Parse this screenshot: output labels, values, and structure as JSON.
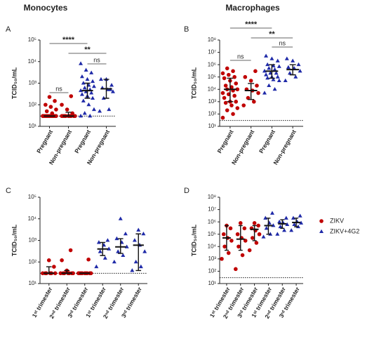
{
  "chart_data": [
    {
      "type": "dotplot",
      "panel": "A",
      "title": "Monocytes",
      "y_label": "TCID₅₀/mL",
      "log_y": true,
      "categories": [
        "Pregnant",
        "Non-pregnant",
        "Pregnant",
        "Non-pregnant"
      ],
      "ylim": [
        10,
        100000
      ],
      "yticks": [
        {
          "value": 10,
          "label": "10¹"
        },
        {
          "value": 100,
          "label": "10²"
        },
        {
          "value": 1000,
          "label": "10³"
        },
        {
          "value": 10000,
          "label": "10⁴"
        },
        {
          "value": 100000,
          "label": "10⁵"
        }
      ],
      "detection_limit": 30,
      "series": [
        {
          "color": "#c00000",
          "marker": "circle",
          "values": [
            [
              30,
              30,
              30,
              30,
              30,
              30,
              30,
              30,
              30,
              30,
              30,
              30,
              40,
              50,
              60,
              80,
              100,
              150,
              230
            ],
            [
              30,
              30,
              30,
              30,
              30,
              30,
              30,
              30,
              30,
              40,
              60,
              100,
              250
            ],
            null,
            null
          ]
        },
        {
          "color": "#1f2aa8",
          "marker": "triangle",
          "values": [
            null,
            null,
            [
              30,
              30,
              40,
              60,
              100,
              150,
              200,
              250,
              300,
              350,
              400,
              450,
              500,
              600,
              700,
              800,
              1000,
              1200,
              1500,
              2000,
              3000,
              4000,
              8000
            ],
            [
              50,
              60,
              200,
              400,
              500,
              600,
              800,
              1500,
              1500,
              500
            ]
          ]
        }
      ],
      "medians": [
        30,
        30,
        450,
        550
      ],
      "iqr": [
        [
          30,
          30
        ],
        [
          30,
          45
        ],
        [
          200,
          1000
        ],
        [
          200,
          1500
        ]
      ],
      "brackets": [
        {
          "label": "****",
          "from": 0,
          "to": 2
        },
        {
          "label": "**",
          "from": 1,
          "to": 3
        },
        {
          "label": "ns",
          "from": 0,
          "to": 1
        },
        {
          "label": "ns",
          "from": 2,
          "to": 3
        }
      ]
    },
    {
      "type": "dotplot",
      "panel": "B",
      "title": "Macrophages",
      "y_label": "TCID₅₀/mL",
      "log_y": true,
      "categories": [
        "Pregnant",
        "Non-pregnant",
        "Pregnant",
        "Non-pregnant"
      ],
      "ylim": [
        10,
        100000000
      ],
      "yticks": [
        {
          "value": 10,
          "label": "10¹"
        },
        {
          "value": 100,
          "label": "10²"
        },
        {
          "value": 1000,
          "label": "10³"
        },
        {
          "value": 10000,
          "label": "10⁴"
        },
        {
          "value": 100000,
          "label": "10⁵"
        },
        {
          "value": 1000000,
          "label": "10⁶"
        },
        {
          "value": 10000000,
          "label": "10⁷"
        },
        {
          "value": 100000000,
          "label": "10⁸"
        }
      ],
      "detection_limit": 30,
      "series": [
        {
          "color": "#c00000",
          "marker": "circle",
          "values": [
            [
              50,
              100,
              200,
              300,
              500,
              800,
              1000,
              1000,
              2000,
              3000,
              4000,
              5000,
              8000,
              10000,
              10000,
              15000,
              20000,
              30000,
              50000,
              80000,
              100000,
              150000,
              200000,
              300000,
              500000
            ],
            [
              500,
              1000,
              2000,
              5000,
              8000,
              10000,
              20000,
              50000,
              100000,
              300000
            ],
            null,
            null
          ]
        },
        {
          "color": "#1f2aa8",
          "marker": "triangle",
          "values": [
            null,
            null,
            [
              5000,
              10000,
              20000,
              50000,
              60000,
              80000,
              100000,
              100000,
              150000,
              200000,
              200000,
              300000,
              400000,
              500000,
              700000,
              800000,
              1000000,
              2000000,
              3000000,
              5000000
            ],
            [
              50000,
              100000,
              200000,
              300000,
              500000,
              600000,
              1000000,
              2000000,
              3000000
            ]
          ]
        }
      ],
      "medians": [
        10000,
        8000,
        300000,
        400000
      ],
      "iqr": [
        [
          1000,
          80000
        ],
        [
          1500,
          30000
        ],
        [
          80000,
          1000000
        ],
        [
          150000,
          1000000
        ]
      ],
      "brackets": [
        {
          "label": "****",
          "from": 0,
          "to": 2
        },
        {
          "label": "**",
          "from": 1,
          "to": 3
        },
        {
          "label": "ns",
          "from": 0,
          "to": 1
        },
        {
          "label": "ns",
          "from": 2,
          "to": 3
        }
      ]
    },
    {
      "type": "dotplot",
      "panel": "C",
      "y_label": "TCID₅₀/mL",
      "log_y": true,
      "categories": [
        "1ˢᵗ trimester",
        "2ⁿᵈ trimester",
        "3ʳᵈ trimester",
        "1ˢᵗ trimester",
        "2ⁿᵈ trimester",
        "3ʳᵈ trimester"
      ],
      "ylim": [
        10,
        100000
      ],
      "yticks": [
        {
          "value": 10,
          "label": "10¹"
        },
        {
          "value": 100,
          "label": "10²"
        },
        {
          "value": 1000,
          "label": "10³"
        },
        {
          "value": 10000,
          "label": "10⁴"
        },
        {
          "value": 100000,
          "label": "10⁵"
        }
      ],
      "detection_limit": 30,
      "series": [
        {
          "color": "#c00000",
          "marker": "circle",
          "values": [
            [
              30,
              30,
              30,
              30,
              30,
              30,
              60,
              120
            ],
            [
              30,
              30,
              30,
              30,
              30,
              30,
              30,
              40,
              120,
              350
            ],
            [
              30,
              30,
              30,
              30,
              30,
              30,
              30,
              30,
              30,
              130
            ],
            null,
            null,
            null
          ]
        },
        {
          "color": "#1f2aa8",
          "marker": "triangle",
          "values": [
            null,
            null,
            null,
            [
              60,
              150,
              300,
              400,
              600,
              800,
              1000
            ],
            [
              100,
              200,
              300,
              500,
              800,
              1200,
              2000,
              10000
            ],
            [
              40,
              60,
              100,
              300,
              600,
              1000,
              2000,
              3000
            ]
          ]
        }
      ],
      "medians": [
        30,
        30,
        30,
        400,
        500,
        600
      ],
      "iqr": [
        [
          30,
          60
        ],
        [
          30,
          40
        ],
        [
          30,
          30
        ],
        [
          200,
          800
        ],
        [
          250,
          1200
        ],
        [
          40,
          2000
        ]
      ]
    },
    {
      "type": "dotplot",
      "panel": "D",
      "y_label": "TCID₅₀/mL",
      "log_y": true,
      "legend": "right",
      "categories": [
        "1ˢᵗ trimester",
        "2ⁿᵈ trimester",
        "3ʳᵈ trimester",
        "1ˢᵗ trimester",
        "2ⁿᵈ trimester",
        "3ʳᵈ trimester"
      ],
      "ylim": [
        10,
        100000000
      ],
      "yticks": [
        {
          "value": 10,
          "label": "10¹"
        },
        {
          "value": 100,
          "label": "10²"
        },
        {
          "value": 1000,
          "label": "10³"
        },
        {
          "value": 10000,
          "label": "10⁴"
        },
        {
          "value": 100000,
          "label": "10⁵"
        },
        {
          "value": 1000000,
          "label": "10⁶"
        },
        {
          "value": 10000000,
          "label": "10⁷"
        },
        {
          "value": 100000000,
          "label": "10⁸"
        }
      ],
      "detection_limit": 30,
      "series": [
        {
          "name": "ZIKV",
          "color": "#c00000",
          "marker": "circle",
          "values": [
            [
              1000,
              3000,
              10000,
              30000,
              50000,
              100000,
              300000,
              500000
            ],
            [
              150,
              2000,
              10000,
              30000,
              50000,
              100000,
              300000,
              800000
            ],
            [
              5000,
              20000,
              50000,
              100000,
              200000,
              300000,
              500000,
              800000
            ],
            null,
            null,
            null
          ]
        },
        {
          "name": "ZIKV+4G2",
          "color": "#1f2aa8",
          "marker": "triangle",
          "values": [
            null,
            null,
            null,
            [
              60000,
              100000,
              300000,
              500000,
              800000,
              2000000,
              5000000
            ],
            [
              100000,
              200000,
              400000,
              600000,
              800000,
              1000000,
              2000000
            ],
            [
              200000,
              400000,
              600000,
              800000,
              1000000,
              2000000,
              3000000
            ]
          ]
        }
      ],
      "medians": [
        50000,
        40000,
        250000,
        500000,
        700000,
        900000
      ],
      "iqr": [
        [
          5000,
          500000
        ],
        [
          5000,
          500000
        ],
        [
          30000,
          500000
        ],
        [
          100000,
          2000000
        ],
        [
          300000,
          1500000
        ],
        [
          400000,
          2000000
        ]
      ]
    }
  ]
}
